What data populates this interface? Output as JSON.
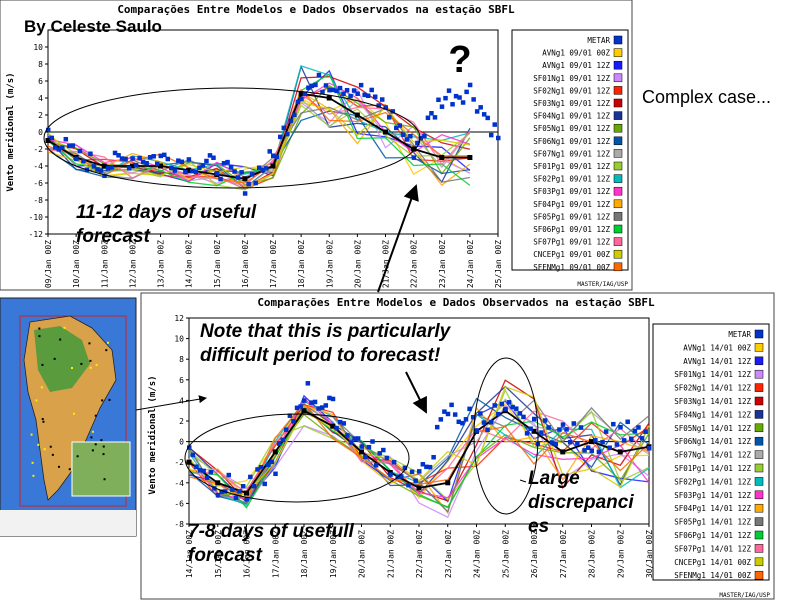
{
  "author": "By Celeste Saulo",
  "side_note": "Complex case...",
  "question_mark": "?",
  "colors": {
    "metar": "#0033cc",
    "series": [
      "#ffcc00",
      "#1a1aff",
      "#cc88ff",
      "#ff2200",
      "#cc0000",
      "#1a3399",
      "#66aa00",
      "#0055aa",
      "#aaaaaa",
      "#99cc33",
      "#00bbbb",
      "#ff33cc",
      "#ffaa00",
      "#777777",
      "#00cc33",
      "#ff6699",
      "#cccc00",
      "#ff6600",
      "#000000"
    ]
  },
  "annotations": {
    "top_forecast": [
      "11-12 days of useful",
      "forecast"
    ],
    "bottom_forecast": [
      "7-8 days of usefull",
      "forecast"
    ],
    "difficult": [
      "Note that this is particularly",
      "difficult period to forecast!"
    ],
    "discrepancies": [
      "Large",
      "discrepanci",
      "es"
    ]
  },
  "chart_data": [
    {
      "type": "line",
      "title": "Comparações Entre Modelos e Dados Observados na estação SBFL",
      "ylabel": "Vento meridional (m/s)",
      "ylim": [
        -12,
        12
      ],
      "yticks": [
        "-12",
        "-10",
        "-8",
        "-6",
        "-4",
        "-2",
        "0",
        "2",
        "4",
        "6",
        "8",
        "10"
      ],
      "categories": [
        "09/Jan 00Z",
        "10/Jan 00Z",
        "11/Jan 00Z",
        "12/Jan 00Z",
        "13/Jan 00Z",
        "14/Jan 00Z",
        "15/Jan 00Z",
        "16/Jan 00Z",
        "17/Jan 00Z",
        "18/Jan 00Z",
        "19/Jan 00Z",
        "20/Jan 00Z",
        "21/Jan 00Z",
        "22/Jan 00Z",
        "23/Jan 00Z",
        "24/Jan 00Z",
        "25/Jan 00Z"
      ],
      "legend": [
        "METAR",
        "AVNg1 09/01 00Z",
        "AVNg1 09/01 12Z",
        "SF01Ng1 09/01 12Z",
        "SF02Ng1 09/01 12Z",
        "SF03Ng1 09/01 12Z",
        "SF04Ng1 09/01 12Z",
        "SF05Ng1 09/01 12Z",
        "SF06Ng1 09/01 12Z",
        "SF07Ng1 09/01 12Z",
        "SF01Pg1 09/01 12Z",
        "SF02Pg1 09/01 12Z",
        "SF03Pg1 09/01 12Z",
        "SF04Pg1 09/01 12Z",
        "SF05Pg1 09/01 12Z",
        "SF06Pg1 09/01 12Z",
        "SF07Pg1 09/01 12Z",
        "CNCEPg1 09/01 00Z",
        "SFENMg1 09/01 00Z"
      ],
      "series": [
        {
          "name": "SFENMg1 09/01 00Z",
          "x": [
            0,
            1,
            2,
            3,
            4,
            5,
            6,
            7,
            8,
            9,
            10,
            11,
            12,
            13,
            14,
            15
          ],
          "values": [
            -1,
            -3,
            -4,
            -4,
            -4,
            -4.5,
            -5,
            -5.5,
            -4,
            4.5,
            4,
            2,
            0,
            -2,
            -3,
            -3
          ]
        },
        {
          "name": "METAR",
          "x": [
            0,
            1,
            2,
            3,
            4,
            5,
            6,
            7,
            8,
            9,
            10,
            11,
            12,
            13,
            14,
            15,
            16
          ],
          "values": [
            0,
            -3,
            -4,
            -3,
            -3,
            -3.5,
            -4,
            -6,
            -3,
            5,
            6,
            5,
            3,
            -2,
            4,
            5,
            -0.5
          ]
        }
      ],
      "credit": "MASTER/IAG/USP"
    },
    {
      "type": "line",
      "title": "Comparações Entre Modelos e Dados Observados na estação SBFL",
      "ylabel": "Vento meridional (m/s)",
      "ylim": [
        -8,
        12
      ],
      "yticks": [
        "-8",
        "-6",
        "-4",
        "-2",
        "0",
        "2",
        "4",
        "6",
        "8",
        "10",
        "12"
      ],
      "categories": [
        "14/Jan 00Z",
        "15/Jan 00Z",
        "16/Jan 00Z",
        "17/Jan 00Z",
        "18/Jan 00Z",
        "19/Jan 00Z",
        "20/Jan 00Z",
        "21/Jan 00Z",
        "22/Jan 00Z",
        "23/Jan 00Z",
        "24/Jan 00Z",
        "25/Jan 00Z",
        "26/Jan 00Z",
        "27/Jan 00Z",
        "28/Jan 00Z",
        "29/Jan 00Z",
        "30/Jan 00Z"
      ],
      "legend": [
        "METAR",
        "AVNg1 14/01 00Z",
        "AVNg1 14/01 12Z",
        "SF01Ng1 14/01 12Z",
        "SF02Ng1 14/01 12Z",
        "SF03Ng1 14/01 12Z",
        "SF04Ng1 14/01 12Z",
        "SF05Ng1 14/01 12Z",
        "SF06Ng1 14/01 12Z",
        "SF07Ng1 14/01 12Z",
        "SF01Pg1 14/01 12Z",
        "SF02Pg1 14/01 12Z",
        "SF03Pg1 14/01 12Z",
        "SF04Pg1 14/01 12Z",
        "SF05Pg1 14/01 12Z",
        "SF06Pg1 14/01 12Z",
        "SF07Pg1 14/01 12Z",
        "CNCEPg1 14/01 00Z",
        "SFENMg1 14/01 00Z"
      ],
      "series": [
        {
          "name": "SFENMg1 14/01 00Z",
          "x": [
            0,
            1,
            2,
            3,
            4,
            5,
            6,
            7,
            8,
            9,
            10,
            11,
            12,
            13,
            14,
            15,
            16
          ],
          "values": [
            -2,
            -4,
            -5,
            -1,
            3,
            1.5,
            -1,
            -3,
            -4.5,
            -4,
            1,
            3,
            1,
            -1,
            0,
            -1,
            -0.5
          ]
        },
        {
          "name": "METAR",
          "x": [
            0,
            1,
            2,
            3,
            4,
            5,
            6,
            7,
            8,
            9,
            10,
            11,
            12,
            13,
            14,
            15,
            16
          ],
          "values": [
            -1,
            -4,
            -5,
            -2,
            5,
            3,
            -0.5,
            -2,
            -4,
            3,
            2,
            3,
            1,
            1,
            0,
            1,
            0
          ]
        }
      ],
      "credit": "MASTER/IAG/USP"
    }
  ]
}
